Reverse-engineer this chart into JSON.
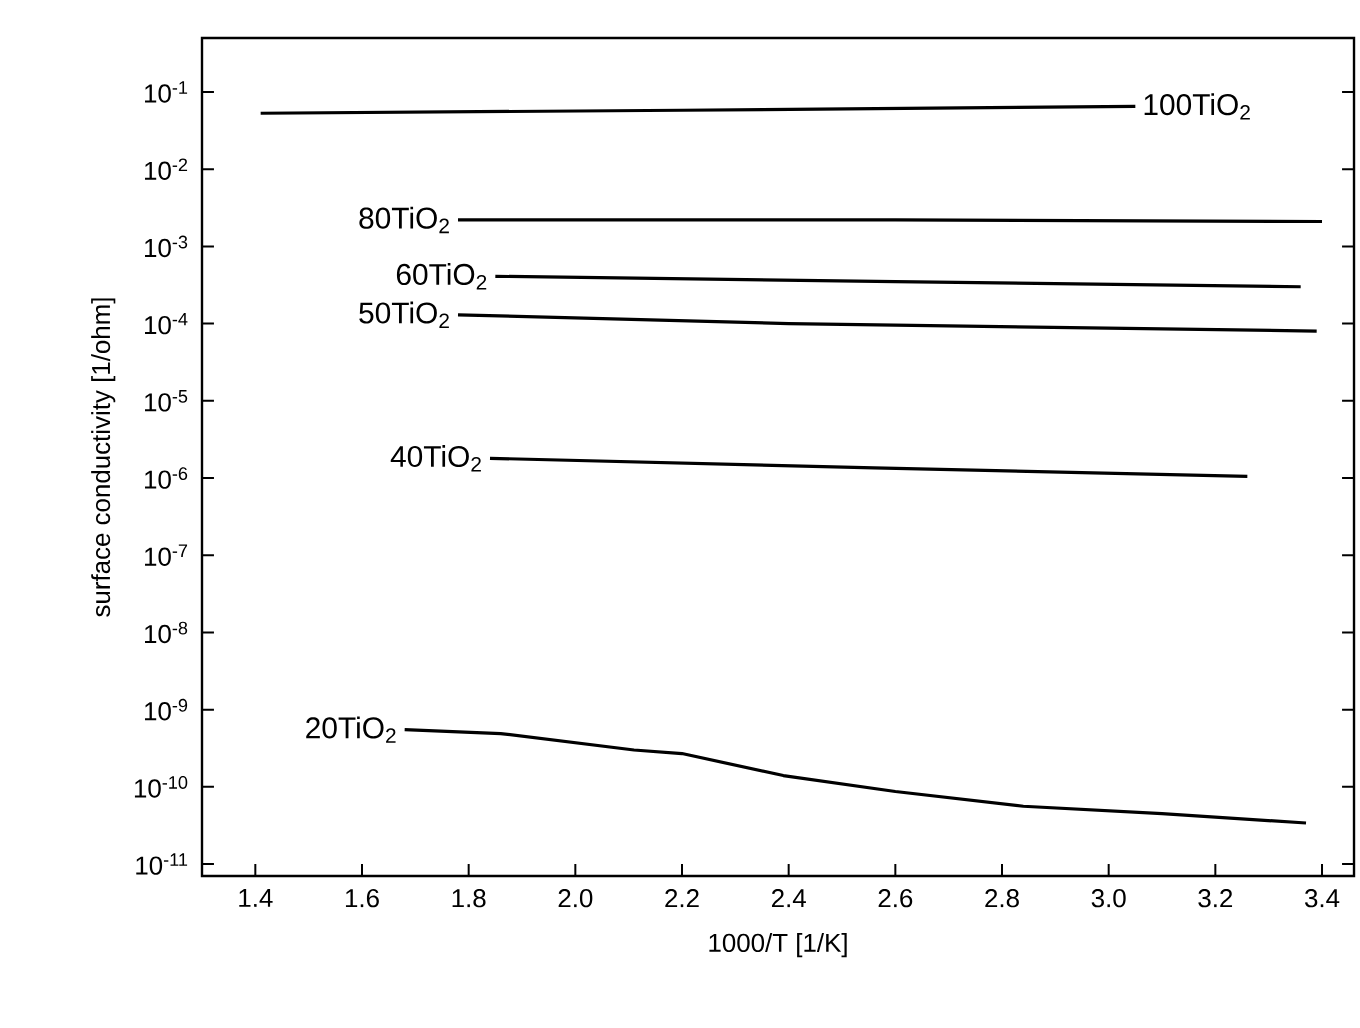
{
  "chart_data": {
    "type": "line",
    "xlabel": "1000/T [1/K]",
    "ylabel": "surface conductivity [1/ohm]",
    "log": "y",
    "marker": "none",
    "line_style": "solid",
    "grid": false,
    "xlim": [
      1.3,
      3.46
    ],
    "xticks": [
      {
        "value": 1.4,
        "label": "1.4"
      },
      {
        "value": 1.6,
        "label": "1.6"
      },
      {
        "value": 1.8,
        "label": "1.8"
      },
      {
        "value": 2.0,
        "label": "2.0"
      },
      {
        "value": 2.2,
        "label": "2.2"
      },
      {
        "value": 2.4,
        "label": "2.4"
      },
      {
        "value": 2.6,
        "label": "2.6"
      },
      {
        "value": 2.8,
        "label": "2.8"
      },
      {
        "value": 3.0,
        "label": "3.0"
      },
      {
        "value": 3.2,
        "label": "3.2"
      },
      {
        "value": 3.4,
        "label": "3.4"
      }
    ],
    "ylim": [
      7e-12,
      0.5
    ],
    "yticks": [
      {
        "value": 0.1,
        "label": "10$^{-1}$"
      },
      {
        "value": 0.01,
        "label": "10$^{-2}$"
      },
      {
        "value": 0.001,
        "label": "10$^{-3}$"
      },
      {
        "value": 0.0001,
        "label": "10$^{-4}$"
      },
      {
        "value": 1e-05,
        "label": "10$^{-5}$"
      },
      {
        "value": 1e-06,
        "label": "10$^{-6}$"
      },
      {
        "value": 1e-07,
        "label": "10$^{-7}$"
      },
      {
        "value": 1e-08,
        "label": "10$^{-8}$"
      },
      {
        "value": 1e-09,
        "label": "10$^{-9}$"
      },
      {
        "value": 1e-10,
        "label": "10$^{-10}$"
      },
      {
        "value": 1e-11,
        "label": "10$^{-11}$"
      }
    ],
    "series": [
      {
        "name": "100TiO$_{2}$",
        "color": "#000000",
        "x": [
          1.41,
          2.2,
          3.05
        ],
        "values": [
          0.053,
          0.058,
          0.065
        ]
      },
      {
        "name": "80TiO$_{2}$",
        "color": "#000000",
        "x": [
          1.78,
          2.6,
          3.4
        ],
        "values": [
          0.0022,
          0.0022,
          0.0021
        ]
      },
      {
        "name": "60TiO$_{2}$",
        "color": "#000000",
        "x": [
          1.85,
          2.6,
          3.36
        ],
        "values": [
          0.00041,
          0.00035,
          0.0003
        ]
      },
      {
        "name": "50TiO$_{2}$",
        "color": "#000000",
        "x": [
          1.78,
          2.4,
          3.39
        ],
        "values": [
          0.00013,
          0.0001,
          8e-05
        ]
      },
      {
        "name": "40TiO$_{2}$",
        "color": "#000000",
        "x": [
          1.84,
          2.56,
          3.26
        ],
        "values": [
          1.8e-06,
          1.35e-06,
          1.05e-06
        ]
      },
      {
        "name": "20TiO$_{2}$",
        "color": "#000000",
        "x": [
          1.68,
          1.86,
          2.11,
          2.2,
          2.39,
          2.6,
          2.84,
          3.1,
          3.37
        ],
        "values": [
          5.5e-10,
          4.9e-10,
          3e-10,
          2.7e-10,
          1.4e-10,
          8.7e-11,
          5.6e-11,
          4.5e-11,
          3.4e-11
        ]
      }
    ]
  }
}
